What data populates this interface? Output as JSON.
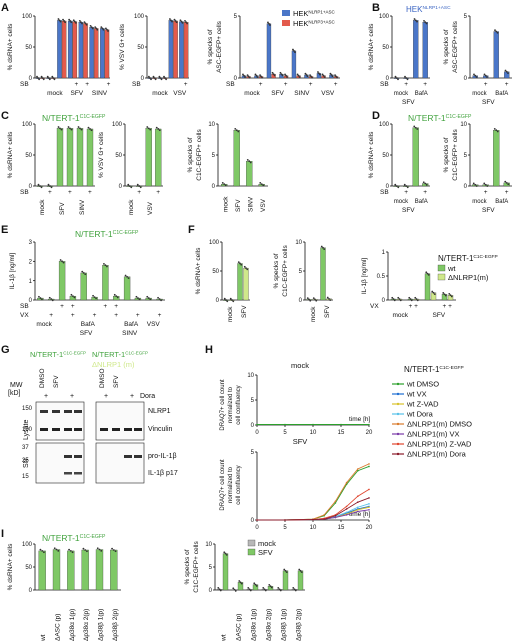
{
  "colors": {
    "blue": "#4a76c8",
    "red": "#e35a4c",
    "green": "#7fc866",
    "lightgreen": "#cfe88a",
    "darkgreen": "#3f9a3a",
    "gray": "#b8b8b8",
    "title_green": "#41a23e",
    "title_blue": "#3a64c2"
  },
  "panels": {
    "A": "A",
    "B": "B",
    "C": "C",
    "D": "D",
    "E": "E",
    "F": "F",
    "G": "G",
    "H": "H",
    "I": "I"
  },
  "cell_lines": {
    "hek_nlrp1": "HEK",
    "hek_nlrp1_sup": "NLRP1+ASC",
    "hek_nlrp3": "HEK",
    "hek_nlrp3_sup": "NLRP3+ASC",
    "tert": "N/TERT-1",
    "tert_sup": "C1C-EGFP",
    "tert_g1": "N/TERT-1",
    "tert_g1_sup": "C1C-EGFP",
    "tert_g2a": "N/TERT-1",
    "tert_g2a_sup": "C1C-EGFP",
    "tert_g2b": "ΔNLRP1 (m)"
  },
  "axis_labels": {
    "dsrna": "% dsRNA+ cells",
    "vsvg": "% VSV G+ cells",
    "asc_l1": "% specks of",
    "asc_l2": "ASC-EGFP+ cells",
    "c1c_l1": "% specks of",
    "c1c_l2": "C1C-EGFP+ cells",
    "il1b": "IL-1β [ng/ml]",
    "draq_l1": "DRAQ7+ cell count",
    "draq_l2": "normalized to",
    "draq_l3": "cell confluency",
    "time": "time [h]"
  },
  "ticks": {
    "pct": [
      "0",
      "50",
      "100"
    ],
    "pct10": [
      "0",
      "5",
      "10"
    ],
    "il": [
      "0",
      "1",
      "2",
      "3"
    ],
    "il1": [
      "0",
      "0.5",
      "1"
    ],
    "pct5": [
      "0",
      "5"
    ],
    "time": [
      "0",
      "5",
      "10",
      "15",
      "20"
    ],
    "draq": [
      "0",
      "5",
      "10"
    ],
    "draq_low": [
      "0",
      "5"
    ]
  },
  "row_labels": {
    "SB": "SB",
    "VX": "VX",
    "plus": "+",
    "plusplus": "+ +",
    "mock": "mock",
    "SFV": "SFV",
    "SINV": "SINV",
    "VSV": "VSV",
    "BafA": "BafA"
  },
  "legend": {
    "mock": "mock",
    "SFV": "SFV",
    "wt": "wt",
    "dnlrp1": "ΔNLRP1(m)"
  },
  "panelI_categories": [
    "wt",
    "ΔASC (p)",
    "Δp38α 1(p)",
    "Δp38α 2(p)",
    "Δp38β 1(p)",
    "Δp38β 2(p)"
  ],
  "panelG": {
    "dmso": "DMSO",
    "sfv": "SFV",
    "dora": "Dora",
    "mw": "MW",
    "kd": "[kD]",
    "lysate": "Lysate",
    "sn": "SN",
    "nlrp1": "NLRP1",
    "vinculin": "Vinculin",
    "pro_il1b": "pro-IL-1β",
    "il1b_p17": "IL-1β p17",
    "mw150": "150",
    "mw100": "100",
    "mw37": "37",
    "mw25": "25",
    "mw15": "15"
  },
  "panelH": {
    "title_mock": "mock",
    "title_sfv": "SFV",
    "legend_header": "N/TERT-1",
    "legend_header_sup": "C1C-EGFP",
    "series": [
      {
        "name": "wt DMSO",
        "color": "#2ca02c"
      },
      {
        "name": "wt VX",
        "color": "#1f6fd1"
      },
      {
        "name": "wt Z-VAD",
        "color": "#d8c22c"
      },
      {
        "name": "wt Dora",
        "color": "#58c1e8"
      },
      {
        "name": "ΔNLRP1(m) DMSO",
        "color": "#d97a2b"
      },
      {
        "name": "ΔNLRP1(m) VX",
        "color": "#7a3aa8"
      },
      {
        "name": "ΔNLRP1(m) Z-VAD",
        "color": "#e0452e"
      },
      {
        "name": "ΔNLRP1(m) Dora",
        "color": "#8a1a2a"
      }
    ]
  },
  "chart_data": [
    {
      "panel": "A",
      "type": "bar",
      "ylabel": "% dsRNA+ cells",
      "ylim": [
        0,
        100
      ],
      "categories": [
        "SB-",
        "SB+",
        "mock",
        "SFV-",
        "SFV+",
        "SINV-",
        "SINV+"
      ],
      "series": [
        {
          "name": "HEK NLRP1+ASC",
          "values": [
            0,
            0,
            93,
            92,
            90,
            82,
            80
          ]
        },
        {
          "name": "HEK NLRP3+ASC",
          "values": [
            0,
            0,
            92,
            91,
            88,
            80,
            78
          ]
        }
      ]
    },
    {
      "panel": "A",
      "type": "bar",
      "ylabel": "% VSV G+ cells",
      "ylim": [
        0,
        100
      ],
      "categories": [
        "SB-",
        "SB+",
        "VSV-",
        "VSV+"
      ],
      "series": [
        {
          "name": "HEK NLRP1+ASC",
          "values": [
            0,
            0,
            93,
            91
          ]
        },
        {
          "name": "HEK NLRP3+ASC",
          "values": [
            0,
            0,
            92,
            90
          ]
        }
      ]
    },
    {
      "panel": "A",
      "type": "bar",
      "ylabel": "% specks of ASC-EGFP+ cells",
      "ylim": [
        0,
        8
      ],
      "categories": [
        "mock-",
        "mock+",
        "SFV-",
        "SFV+",
        "SINV-",
        "SINV+",
        "VSV-",
        "VSV+"
      ],
      "series": [
        {
          "name": "HEK NLRP1+ASC",
          "values": [
            0.3,
            0.3,
            7,
            0.5,
            3.5,
            0.4,
            0.6,
            0.4
          ]
        },
        {
          "name": "HEK NLRP3+ASC",
          "values": [
            0.2,
            0.2,
            0.5,
            0.3,
            0.3,
            0.2,
            0.3,
            0.2
          ]
        }
      ]
    },
    {
      "panel": "B",
      "type": "bar",
      "ylabel": "% dsRNA+ cells",
      "ylim": [
        0,
        100
      ],
      "categories": [
        "mock-",
        "mock+",
        "SFV-",
        "SFV+"
      ],
      "series": [
        {
          "name": "HEK NLRP1+ASC",
          "values": [
            0,
            0,
            93,
            90
          ]
        }
      ]
    },
    {
      "panel": "B",
      "type": "bar",
      "ylabel": "% specks of ASC-EGFP+ cells",
      "ylim": [
        0,
        8
      ],
      "categories": [
        "mock-",
        "mock+",
        "SFV-",
        "SFV+"
      ],
      "series": [
        {
          "name": "HEK NLRP1+ASC",
          "values": [
            0.3,
            0.3,
            6,
            0.8
          ]
        }
      ]
    },
    {
      "panel": "C",
      "type": "bar",
      "ylabel": "% dsRNA+ cells",
      "ylim": [
        0,
        100
      ],
      "categories": [
        "mock-",
        "mock+",
        "SFV-",
        "SFV+",
        "SINV-",
        "SINV+"
      ],
      "values": [
        0,
        0,
        93,
        93,
        93,
        92
      ]
    },
    {
      "panel": "C",
      "type": "bar",
      "ylabel": "% VSV G+ cells",
      "ylim": [
        0,
        100
      ],
      "categories": [
        "mock-",
        "mock+",
        "VSV-",
        "VSV+"
      ],
      "values": [
        0,
        0,
        93,
        92
      ]
    },
    {
      "panel": "C",
      "type": "bar",
      "ylabel": "% specks of C1C-EGFP+ cells",
      "ylim": [
        0,
        10
      ],
      "categories": [
        "mock",
        "SFV",
        "SINV",
        "VSV"
      ],
      "values": [
        0.3,
        9,
        4,
        0.3
      ]
    },
    {
      "panel": "D",
      "type": "bar",
      "ylabel": "% dsRNA+ cells",
      "ylim": [
        0,
        100
      ],
      "categories": [
        "mock-",
        "mock+",
        "SFV-",
        "SFV+"
      ],
      "values": [
        0,
        0,
        94,
        4
      ]
    },
    {
      "panel": "D",
      "type": "bar",
      "ylabel": "% specks of C1C-EGFP+ cells",
      "ylim": [
        0,
        10
      ],
      "categories": [
        "mock-",
        "mock+",
        "SFV-",
        "SFV+"
      ],
      "values": [
        0.2,
        0.2,
        9,
        0.5
      ]
    },
    {
      "panel": "E",
      "type": "bar",
      "ylabel": "IL-1β [ng/ml]",
      "ylim": [
        0,
        3
      ],
      "categories": [
        "mock",
        "mock VX",
        "SFV",
        "SFV VX",
        "SFV BafA",
        "SFV BafA VX",
        "SINV",
        "SINV VX",
        "SINV BafA",
        "SINV BafA VX",
        "VSV",
        "VSV VX"
      ],
      "values": [
        0.1,
        0.05,
        2.0,
        0.2,
        1.4,
        0.15,
        1.8,
        0.2,
        1.2,
        0.1,
        0.1,
        0.05
      ]
    },
    {
      "panel": "F",
      "type": "bar",
      "ylabel": "% dsRNA+ cells",
      "ylim": [
        0,
        100
      ],
      "categories": [
        "mock",
        "SFV"
      ],
      "series": [
        {
          "name": "wt",
          "values": [
            0,
            63
          ]
        },
        {
          "name": "ΔNLRP1(m)",
          "values": [
            0,
            55
          ]
        }
      ]
    },
    {
      "panel": "F",
      "type": "bar",
      "ylabel": "% specks of C1C-EGFP+ cells",
      "ylim": [
        0,
        10
      ],
      "categories": [
        "mock",
        "SFV"
      ],
      "series": [
        {
          "name": "wt",
          "values": [
            0.1,
            9
          ]
        },
        {
          "name": "ΔNLRP1(m)",
          "values": [
            0.1,
            0.2
          ]
        }
      ]
    },
    {
      "panel": "F",
      "type": "bar",
      "ylabel": "IL-1β [ng/ml]",
      "ylim": [
        0,
        1
      ],
      "categories": [
        "mock",
        "mock VX",
        "SFV",
        "SFV VX"
      ],
      "series": [
        {
          "name": "wt",
          "values": [
            0.02,
            0.02,
            0.55,
            0.12
          ]
        },
        {
          "name": "ΔNLRP1(m)",
          "values": [
            0.02,
            0.02,
            0.15,
            0.1
          ]
        }
      ]
    },
    {
      "panel": "H",
      "type": "line",
      "title": "mock",
      "xlabel": "time [h]",
      "ylabel": "DRAQ7+ cell count normalized to cell confluency",
      "xlim": [
        0,
        20
      ],
      "ylim": [
        0,
        10
      ],
      "series": [
        {
          "name": "all",
          "x": [
            0,
            5,
            10,
            15,
            20
          ],
          "values": [
            0.1,
            0.1,
            0.1,
            0.1,
            0.1
          ]
        }
      ]
    },
    {
      "panel": "H",
      "type": "line",
      "title": "SFV",
      "xlabel": "time [h]",
      "ylabel": "DRAQ7+ cell count normalized to cell confluency",
      "xlim": [
        0,
        20
      ],
      "ylim": [
        0,
        8
      ],
      "series": [
        {
          "name": "wt DMSO",
          "x": [
            0,
            5,
            10,
            12,
            14,
            16,
            18,
            20
          ],
          "values": [
            0,
            0,
            0.1,
            0.5,
            2,
            4.2,
            5.8,
            6.3
          ]
        },
        {
          "name": "wt VX",
          "x": [
            0,
            5,
            10,
            12,
            14,
            16,
            18,
            20
          ],
          "values": [
            0,
            0,
            0.05,
            0.1,
            0.3,
            0.8,
            1.3,
            1.6
          ]
        },
        {
          "name": "wt Z-VAD",
          "x": [
            0,
            5,
            10,
            12,
            14,
            16,
            18,
            20
          ],
          "values": [
            0,
            0,
            0.05,
            0.1,
            0.3,
            0.7,
            1.2,
            1.5
          ]
        },
        {
          "name": "wt Dora",
          "x": [
            0,
            5,
            10,
            12,
            14,
            16,
            18,
            20
          ],
          "values": [
            0,
            0,
            0.05,
            0.1,
            0.4,
            0.9,
            1.5,
            1.9
          ]
        },
        {
          "name": "ΔNLRP1(m) DMSO",
          "x": [
            0,
            5,
            10,
            12,
            14,
            16,
            18,
            20
          ],
          "values": [
            0,
            0,
            0.1,
            0.6,
            2.2,
            4.4,
            6.0,
            6.6
          ]
        },
        {
          "name": "ΔNLRP1(m) VX",
          "x": [
            0,
            5,
            10,
            12,
            14,
            16,
            18,
            20
          ],
          "values": [
            0,
            0,
            0.05,
            0.1,
            0.3,
            0.6,
            1.0,
            1.2
          ]
        },
        {
          "name": "ΔNLRP1(m) Z-VAD",
          "x": [
            0,
            5,
            10,
            12,
            14,
            16,
            18,
            20
          ],
          "values": [
            0,
            0,
            0.05,
            0.2,
            0.6,
            1.6,
            2.8,
            3.6
          ]
        },
        {
          "name": "ΔNLRP1(m) Dora",
          "x": [
            0,
            5,
            10,
            12,
            14,
            16,
            18,
            20
          ],
          "values": [
            0,
            0,
            0.05,
            0.1,
            0.5,
            1.3,
            2.1,
            2.6
          ]
        }
      ]
    },
    {
      "panel": "I",
      "type": "bar",
      "ylabel": "% dsRNA+ cells",
      "ylim": [
        0,
        100
      ],
      "categories": [
        "wt",
        "ΔASC (p)",
        "Δp38α 1(p)",
        "Δp38α 2(p)",
        "Δp38β 1(p)",
        "Δp38β 2(p)"
      ],
      "values": [
        85,
        88,
        85,
        87,
        88,
        87
      ]
    },
    {
      "panel": "I",
      "type": "bar",
      "ylabel": "% specks of C1C-EGFP+ cells",
      "ylim": [
        0,
        12
      ],
      "categories": [
        "wt",
        "ΔASC (p)",
        "Δp38α 1(p)",
        "Δp38α 2(p)",
        "Δp38β 1(p)",
        "Δp38β 2(p)"
      ],
      "series": [
        {
          "name": "mock",
          "values": [
            0.2,
            0.1,
            0.2,
            0.2,
            0.2,
            0.2
          ]
        },
        {
          "name": "SFV",
          "values": [
            9.5,
            2,
            1.4,
            1,
            5,
            5
          ]
        }
      ]
    }
  ]
}
